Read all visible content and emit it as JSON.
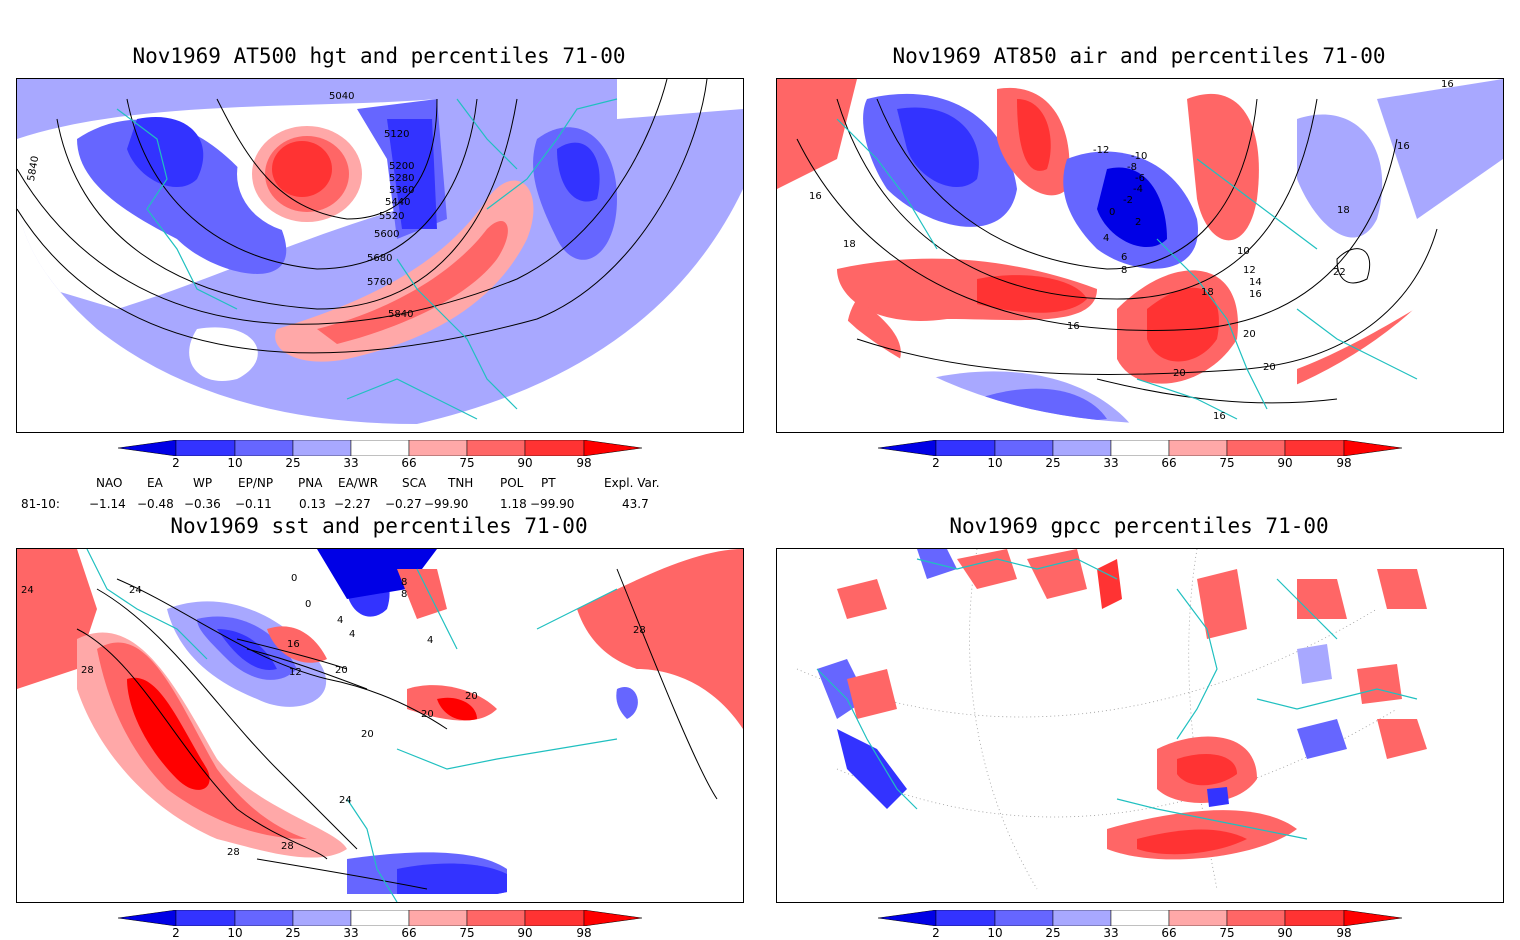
{
  "panels": [
    {
      "title": "Nov1969 AT500 hgt and percentiles 71-00",
      "contour_labels": [
        "5040",
        "5120",
        "5200",
        "5280",
        "5360",
        "5440",
        "5520",
        "5600",
        "5680",
        "5760",
        "5840",
        "5840"
      ]
    },
    {
      "title": "Nov1969 AT850 air and percentiles 71-00",
      "contour_labels": [
        "16",
        "16",
        "18",
        "-12",
        "-10",
        "-8",
        "-6",
        "-4",
        "-2",
        "0",
        "2",
        "4",
        "6",
        "8",
        "10",
        "12",
        "14",
        "16",
        "16",
        "18",
        "18",
        "20",
        "20",
        "20",
        "22",
        "16",
        "16"
      ]
    },
    {
      "title": "Nov1969 sst and percentiles 71-00",
      "contour_labels": [
        "24",
        "24",
        "28",
        "0",
        "0",
        "4",
        "4",
        "8",
        "8",
        "4",
        "16",
        "12",
        "20",
        "20",
        "20",
        "20",
        "24",
        "28",
        "28",
        "28"
      ]
    },
    {
      "title": "Nov1969 gpcc percentiles 71-00",
      "contour_labels": []
    }
  ],
  "colorbar": {
    "labels": [
      "2",
      "10",
      "25",
      "33",
      "66",
      "75",
      "90",
      "98"
    ],
    "colors": {
      "below2": "#0000e6",
      "b2_10": "#3333ff",
      "b10_25": "#6666ff",
      "b25_33": "#a8a8ff",
      "a66_75": "#ffa8a8",
      "a75_90": "#ff6666",
      "a90_98": "#ff3333",
      "above98": "#ff0000"
    }
  },
  "indices": {
    "header": [
      "NAO",
      "EA",
      "WP",
      "EP/NP",
      "PNA",
      "EA/WR",
      "SCA",
      "TNH",
      "POL",
      "PT",
      "Expl. Var."
    ],
    "row_label": "81-10:",
    "values": [
      "−1.14",
      "−0.48",
      "−0.36",
      "−0.11",
      "0.13",
      "−2.27",
      "−0.27",
      "−99.90",
      "1.18",
      "−99.90",
      "43.7"
    ]
  },
  "colors": {
    "coast": "#20c0c0",
    "contour": "#000000",
    "frame": "#000000"
  }
}
